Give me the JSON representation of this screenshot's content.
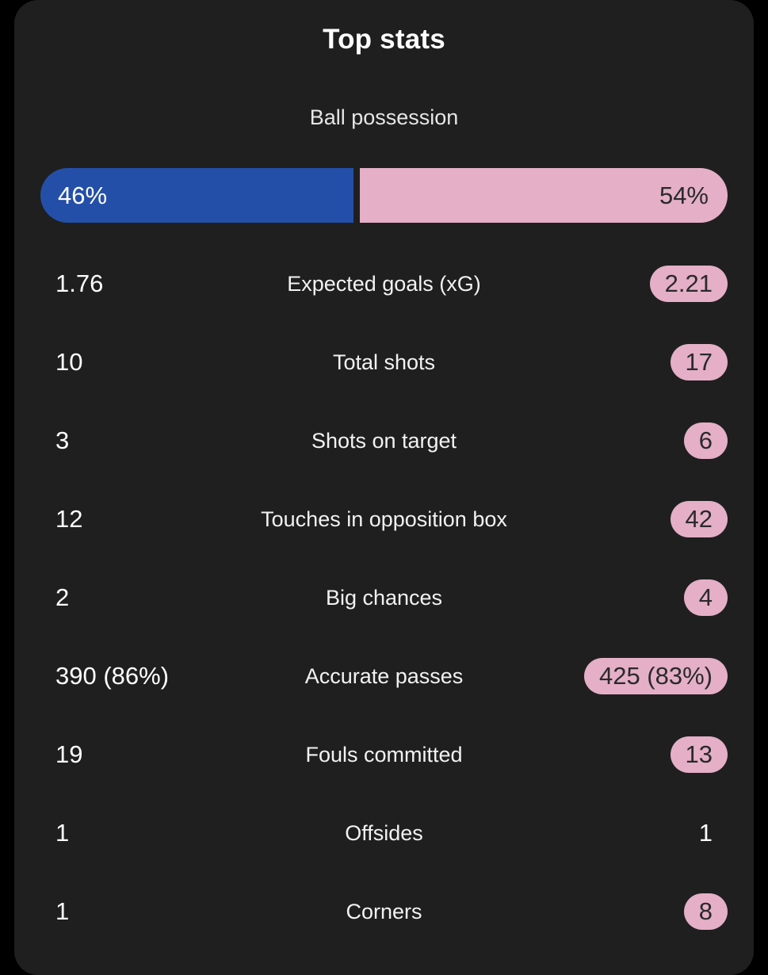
{
  "title": "Top stats",
  "colors": {
    "home": "#234fa8",
    "away": "#e4afc7",
    "card_background": "#1f1f1f"
  },
  "possession": {
    "label": "Ball possession",
    "home_text": "46%",
    "away_text": "54%",
    "home_fraction": 0.46,
    "away_fraction": 0.54
  },
  "stats": [
    {
      "label": "Expected goals (xG)",
      "home": "1.76",
      "away": "2.21",
      "highlight": "away"
    },
    {
      "label": "Total shots",
      "home": "10",
      "away": "17",
      "highlight": "away"
    },
    {
      "label": "Shots on target",
      "home": "3",
      "away": "6",
      "highlight": "away"
    },
    {
      "label": "Touches in opposition box",
      "home": "12",
      "away": "42",
      "highlight": "away"
    },
    {
      "label": "Big chances",
      "home": "2",
      "away": "4",
      "highlight": "away"
    },
    {
      "label": "Accurate passes",
      "home": "390 (86%)",
      "away": "425 (83%)",
      "highlight": "away"
    },
    {
      "label": "Fouls committed",
      "home": "19",
      "away": "13",
      "highlight": "away"
    },
    {
      "label": "Offsides",
      "home": "1",
      "away": "1",
      "highlight": "none"
    },
    {
      "label": "Corners",
      "home": "1",
      "away": "8",
      "highlight": "away"
    }
  ]
}
